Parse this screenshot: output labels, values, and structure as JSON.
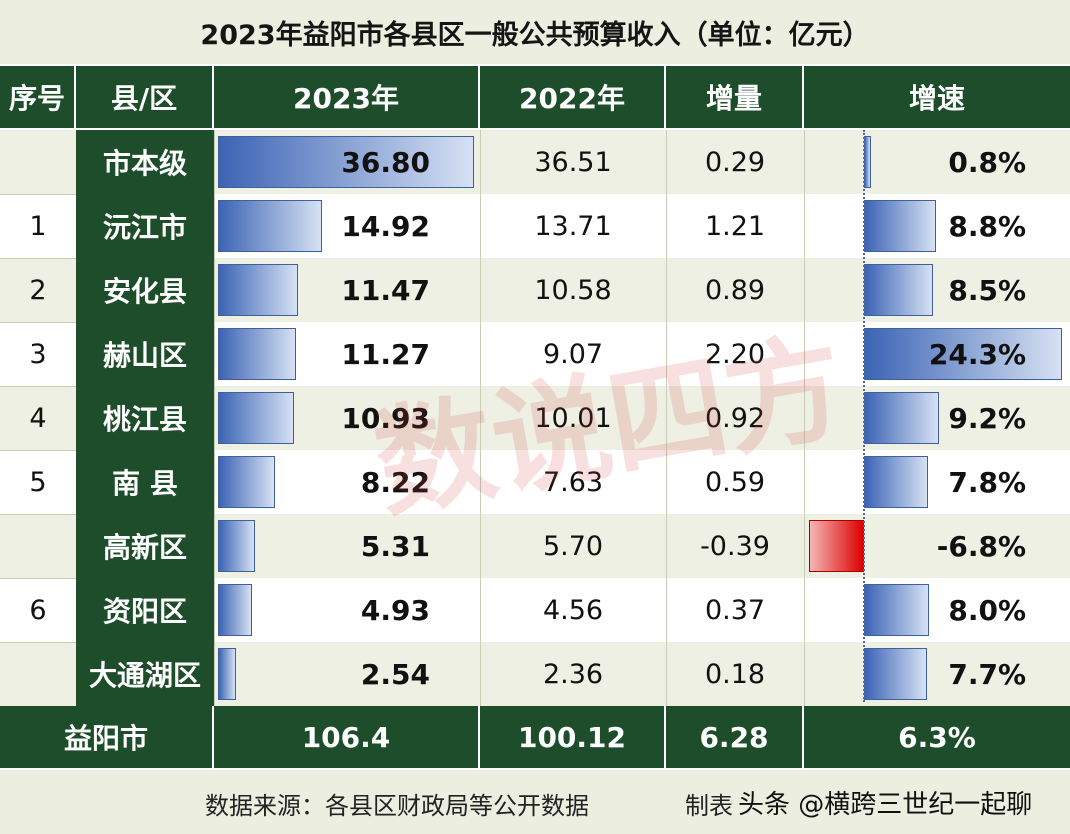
{
  "title": "2023年益阳市各县区一般公共预算收入（单位：亿元）",
  "header": {
    "idx": "序号",
    "name": "县/区",
    "v2023": "2023年",
    "v2022": "2022年",
    "inc": "增量",
    "growth": "增速"
  },
  "rows": [
    {
      "idx": "",
      "name": "市本级",
      "v2023": "36.80",
      "v2022": "36.51",
      "inc": "0.29",
      "growth": "0.8%"
    },
    {
      "idx": "1",
      "name": "沅江市",
      "v2023": "14.92",
      "v2022": "13.71",
      "inc": "1.21",
      "growth": "8.8%"
    },
    {
      "idx": "2",
      "name": "安化县",
      "v2023": "11.47",
      "v2022": "10.58",
      "inc": "0.89",
      "growth": "8.5%"
    },
    {
      "idx": "3",
      "name": "赫山区",
      "v2023": "11.27",
      "v2022": "9.07",
      "inc": "2.20",
      "growth": "24.3%"
    },
    {
      "idx": "4",
      "name": "桃江县",
      "v2023": "10.93",
      "v2022": "10.01",
      "inc": "0.92",
      "growth": "9.2%"
    },
    {
      "idx": "5",
      "name": "南  县",
      "v2023": "8.22",
      "v2022": "7.63",
      "inc": "0.59",
      "growth": "7.8%"
    },
    {
      "idx": "",
      "name": "高新区",
      "v2023": "5.31",
      "v2022": "5.70",
      "inc": "-0.39",
      "growth": "-6.8%"
    },
    {
      "idx": "6",
      "name": "资阳区",
      "v2023": "4.93",
      "v2022": "4.56",
      "inc": "0.37",
      "growth": "8.0%"
    },
    {
      "idx": "",
      "name": "大通湖区",
      "v2023": "2.54",
      "v2022": "2.36",
      "inc": "0.18",
      "growth": "7.7%"
    }
  ],
  "total": {
    "name": "益阳市",
    "v2023": "106.4",
    "v2022": "100.12",
    "inc": "6.28",
    "growth": "6.3%"
  },
  "footer": {
    "source": "数据来源：各县区财政局等公开数据",
    "maker": "制表",
    "watermark_text": "头条 @横跨三世纪一起聊"
  },
  "watermark": "数说四方",
  "chart_data": {
    "type": "table",
    "categories": [
      "市本级",
      "沅江市",
      "安化县",
      "赫山区",
      "桃江县",
      "南  县",
      "高新区",
      "资阳区",
      "大通湖区"
    ],
    "series": [
      {
        "name": "2023年",
        "values": [
          36.8,
          14.92,
          11.47,
          11.27,
          10.93,
          8.22,
          5.31,
          4.93,
          2.54
        ]
      },
      {
        "name": "2022年",
        "values": [
          36.51,
          13.71,
          10.58,
          9.07,
          10.01,
          7.63,
          5.7,
          4.56,
          2.36
        ]
      },
      {
        "name": "增量",
        "values": [
          0.29,
          1.21,
          0.89,
          2.2,
          0.92,
          0.59,
          -0.39,
          0.37,
          0.18
        ]
      },
      {
        "name": "增速",
        "values": [
          0.8,
          8.8,
          8.5,
          24.3,
          9.2,
          7.8,
          -6.8,
          8.0,
          7.7
        ]
      }
    ],
    "total": {
      "2023年": 106.4,
      "2022年": 100.12,
      "增量": 6.28,
      "增速": 6.3
    },
    "colors": {
      "header": "#1e4d2b",
      "positive_bar": "#3c64b4",
      "negative_bar": "#dd0000"
    }
  }
}
